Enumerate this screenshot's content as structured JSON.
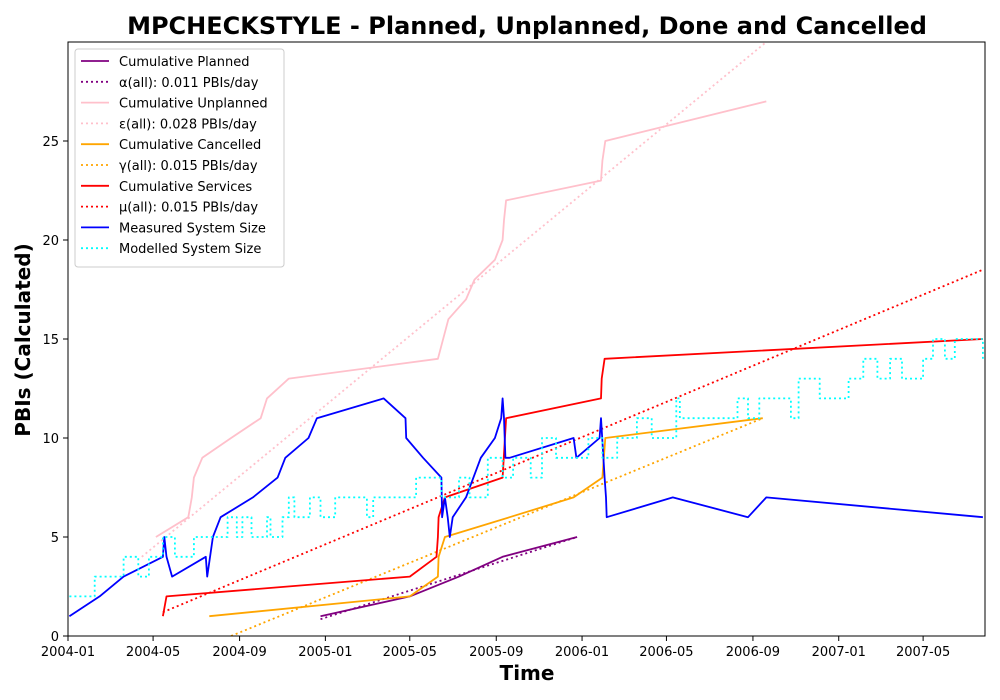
{
  "chart_data": {
    "type": "line",
    "title": "MPCHECKSTYLE - Planned, Unplanned, Done  and Cancelled",
    "xlabel": "Time",
    "ylabel": "PBIs (Calculated)",
    "xlim": [
      "2004-01-01",
      "2007-07-28"
    ],
    "ylim": [
      0,
      30
    ],
    "x_ticks": [
      {
        "date": "2004-01-01",
        "label": "2004-01"
      },
      {
        "date": "2004-05-01",
        "label": "2004-05"
      },
      {
        "date": "2004-09-01",
        "label": "2004-09"
      },
      {
        "date": "2005-01-01",
        "label": "2005-01"
      },
      {
        "date": "2005-05-01",
        "label": "2005-05"
      },
      {
        "date": "2005-09-01",
        "label": "2005-09"
      },
      {
        "date": "2006-01-01",
        "label": "2006-01"
      },
      {
        "date": "2006-05-01",
        "label": "2006-05"
      },
      {
        "date": "2006-09-01",
        "label": "2006-09"
      },
      {
        "date": "2007-01-01",
        "label": "2007-01"
      },
      {
        "date": "2007-05-01",
        "label": "2007-05"
      }
    ],
    "y_ticks": [
      0,
      5,
      10,
      15,
      20,
      25
    ],
    "grid": false,
    "legend_position": "top-left",
    "series": [
      {
        "name": "Cumulative Planned",
        "color": "#800080",
        "dash": "solid",
        "points": [
          [
            "2004-12-25",
            1
          ],
          [
            "2005-05-01",
            2
          ],
          [
            "2005-07-10",
            3
          ],
          [
            "2005-09-10",
            4
          ],
          [
            "2005-12-25",
            5
          ]
        ]
      },
      {
        "name": "α(all): 0.011 PBIs/day",
        "color": "#800080",
        "dash": "dotted",
        "points": [
          [
            "2004-12-25",
            0.85
          ],
          [
            "2005-12-25",
            5.0
          ]
        ]
      },
      {
        "name": "Cumulative Unplanned",
        "color": "#ffc0cb",
        "dash": "solid",
        "points": [
          [
            "2004-05-05",
            5
          ],
          [
            "2004-06-20",
            6
          ],
          [
            "2004-06-25",
            7
          ],
          [
            "2004-06-28",
            8
          ],
          [
            "2004-07-10",
            9
          ],
          [
            "2004-08-20",
            10
          ],
          [
            "2004-10-01",
            11
          ],
          [
            "2004-10-10",
            12
          ],
          [
            "2004-11-10",
            13
          ],
          [
            "2005-06-10",
            14
          ],
          [
            "2005-06-25",
            16
          ],
          [
            "2005-07-20",
            17
          ],
          [
            "2005-08-01",
            18
          ],
          [
            "2005-08-30",
            19
          ],
          [
            "2005-09-10",
            20
          ],
          [
            "2005-09-12",
            21
          ],
          [
            "2005-09-15",
            22
          ],
          [
            "2006-01-28",
            23
          ],
          [
            "2006-01-30",
            24
          ],
          [
            "2006-02-03",
            25
          ],
          [
            "2006-09-20",
            27
          ]
        ]
      },
      {
        "name": "ε(all): 0.028 PBIs/day",
        "color": "#ffc0cb",
        "dash": "dotted",
        "points": [
          [
            "2004-04-15",
            4.0
          ],
          [
            "2006-09-20",
            30.0
          ]
        ]
      },
      {
        "name": "Cumulative Cancelled",
        "color": "#ffa500",
        "dash": "solid",
        "points": [
          [
            "2004-07-20",
            1
          ],
          [
            "2005-05-01",
            2
          ],
          [
            "2005-06-10",
            3
          ],
          [
            "2005-06-11",
            4
          ],
          [
            "2005-06-20",
            5
          ],
          [
            "2005-09-20",
            6
          ],
          [
            "2005-12-20",
            7
          ],
          [
            "2006-01-30",
            8
          ],
          [
            "2006-02-03",
            10
          ],
          [
            "2006-09-15",
            11
          ]
        ]
      },
      {
        "name": "γ(all): 0.015 PBIs/day",
        "color": "#ffa500",
        "dash": "dotted",
        "points": [
          [
            "2004-08-20",
            0.0
          ],
          [
            "2006-09-15",
            11.0
          ]
        ]
      },
      {
        "name": "Cumulative Services",
        "color": "#ff0000",
        "dash": "solid",
        "points": [
          [
            "2004-05-15",
            1
          ],
          [
            "2004-05-20",
            2
          ],
          [
            "2005-05-01",
            3
          ],
          [
            "2005-06-08",
            4
          ],
          [
            "2005-06-10",
            5
          ],
          [
            "2005-06-11",
            6
          ],
          [
            "2005-06-20",
            7
          ],
          [
            "2005-09-10",
            8
          ],
          [
            "2005-09-15",
            11
          ],
          [
            "2006-01-28",
            12
          ],
          [
            "2006-01-29",
            13
          ],
          [
            "2006-02-02",
            14
          ],
          [
            "2007-07-25",
            15
          ]
        ]
      },
      {
        "name": "μ(all): 0.015 PBIs/day",
        "color": "#ff0000",
        "dash": "dotted",
        "points": [
          [
            "2004-05-15",
            1.2
          ],
          [
            "2007-07-25",
            18.5
          ]
        ]
      },
      {
        "name": "Measured System Size",
        "color": "#0000ff",
        "dash": "solid",
        "points": [
          [
            "2004-01-03",
            1
          ],
          [
            "2004-02-15",
            2
          ],
          [
            "2004-03-20",
            3
          ],
          [
            "2004-05-15",
            4
          ],
          [
            "2004-05-17",
            5
          ],
          [
            "2004-05-20",
            4
          ],
          [
            "2004-05-28",
            3
          ],
          [
            "2004-07-15",
            4
          ],
          [
            "2004-07-17",
            3
          ],
          [
            "2004-07-25",
            5
          ],
          [
            "2004-08-05",
            6
          ],
          [
            "2004-09-20",
            7
          ],
          [
            "2004-10-25",
            8
          ],
          [
            "2004-11-05",
            9
          ],
          [
            "2004-12-08",
            10
          ],
          [
            "2004-12-20",
            11
          ],
          [
            "2005-03-25",
            12
          ],
          [
            "2005-04-25",
            11
          ],
          [
            "2005-04-26",
            10
          ],
          [
            "2005-05-20",
            9
          ],
          [
            "2005-06-15",
            8
          ],
          [
            "2005-06-16",
            6
          ],
          [
            "2005-06-20",
            7
          ],
          [
            "2005-06-24",
            6
          ],
          [
            "2005-06-27",
            5
          ],
          [
            "2005-07-01",
            6
          ],
          [
            "2005-07-20",
            7
          ],
          [
            "2005-08-10",
            9
          ],
          [
            "2005-08-30",
            10
          ],
          [
            "2005-09-08",
            11
          ],
          [
            "2005-09-10",
            12
          ],
          [
            "2005-09-12",
            11
          ],
          [
            "2005-09-14",
            9
          ],
          [
            "2005-09-20",
            9
          ],
          [
            "2005-12-20",
            10
          ],
          [
            "2005-12-24",
            9
          ],
          [
            "2006-01-26",
            10
          ],
          [
            "2006-01-28",
            11
          ],
          [
            "2006-02-02",
            8
          ],
          [
            "2006-02-04",
            7
          ],
          [
            "2006-02-05",
            6
          ],
          [
            "2006-05-10",
            7
          ],
          [
            "2006-08-25",
            6
          ],
          [
            "2006-09-20",
            7
          ],
          [
            "2007-07-25",
            6
          ]
        ]
      },
      {
        "name": "Modelled System Size",
        "color": "#00ffff",
        "dash": "dotted",
        "step": true,
        "points": [
          [
            "2004-01-03",
            2
          ],
          [
            "2004-02-08",
            3
          ],
          [
            "2004-03-20",
            4
          ],
          [
            "2004-04-10",
            3
          ],
          [
            "2004-04-25",
            4
          ],
          [
            "2004-05-15",
            5
          ],
          [
            "2004-06-01",
            4
          ],
          [
            "2004-06-28",
            5
          ],
          [
            "2004-08-15",
            6
          ],
          [
            "2004-08-28",
            5
          ],
          [
            "2004-09-05",
            6
          ],
          [
            "2004-09-18",
            5
          ],
          [
            "2004-10-10",
            6
          ],
          [
            "2004-10-15",
            5
          ],
          [
            "2004-11-01",
            6
          ],
          [
            "2004-11-10",
            7
          ],
          [
            "2004-11-18",
            6
          ],
          [
            "2004-12-10",
            7
          ],
          [
            "2004-12-25",
            6
          ],
          [
            "2005-01-15",
            7
          ],
          [
            "2005-03-01",
            6
          ],
          [
            "2005-03-10",
            7
          ],
          [
            "2005-05-10",
            8
          ],
          [
            "2005-06-15",
            7
          ],
          [
            "2005-07-10",
            8
          ],
          [
            "2005-07-25",
            7
          ],
          [
            "2005-08-20",
            9
          ],
          [
            "2005-09-10",
            8
          ],
          [
            "2005-09-25",
            9
          ],
          [
            "2005-10-20",
            8
          ],
          [
            "2005-11-05",
            10
          ],
          [
            "2005-11-25",
            9
          ],
          [
            "2006-01-10",
            10
          ],
          [
            "2006-01-30",
            9
          ],
          [
            "2006-02-20",
            10
          ],
          [
            "2006-03-20",
            11
          ],
          [
            "2006-04-10",
            10
          ],
          [
            "2006-05-15",
            12
          ],
          [
            "2006-05-20",
            11
          ],
          [
            "2006-08-10",
            12
          ],
          [
            "2006-08-25",
            11
          ],
          [
            "2006-09-10",
            12
          ],
          [
            "2006-10-25",
            11
          ],
          [
            "2006-11-05",
            13
          ],
          [
            "2006-12-05",
            12
          ],
          [
            "2007-01-15",
            13
          ],
          [
            "2007-02-05",
            14
          ],
          [
            "2007-02-25",
            13
          ],
          [
            "2007-03-15",
            14
          ],
          [
            "2007-04-01",
            13
          ],
          [
            "2007-05-01",
            14
          ],
          [
            "2007-05-15",
            15
          ],
          [
            "2007-06-01",
            14
          ],
          [
            "2007-06-15",
            15
          ],
          [
            "2007-07-25",
            14
          ]
        ]
      }
    ]
  }
}
